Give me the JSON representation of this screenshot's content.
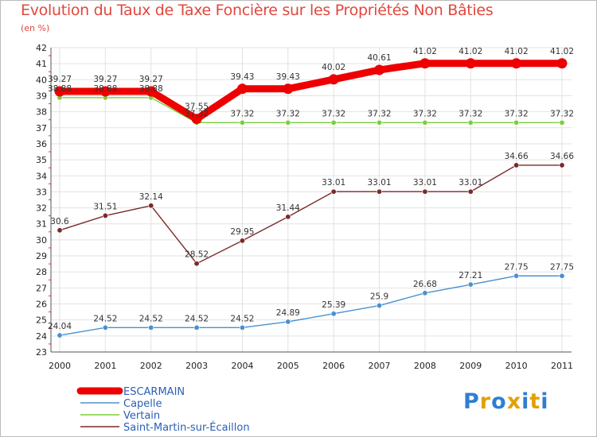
{
  "chart_data": {
    "type": "line",
    "title": "Evolution du Taux de Taxe Foncière sur les Propriétés Non Bâties",
    "ylabel": "(en %)",
    "xlabel": "",
    "ylim": [
      23,
      42
    ],
    "yticks": [
      "23",
      "24",
      "25",
      "26",
      "27",
      "28",
      "29",
      "30",
      "31",
      "32",
      "33",
      "34",
      "35",
      "36",
      "37",
      "38",
      "39",
      "40",
      "41",
      "42"
    ],
    "categories": [
      "2000",
      "2001",
      "2002",
      "2003",
      "2004",
      "2005",
      "2006",
      "2007",
      "2008",
      "2009",
      "2010",
      "2011"
    ],
    "series": [
      {
        "name": "ESCARMAIN",
        "color": "#ee0000",
        "values": [
          39.27,
          39.27,
          39.27,
          37.55,
          39.43,
          39.43,
          40.02,
          40.61,
          41.02,
          41.02,
          41.02,
          41.02
        ],
        "labels": [
          "39.27",
          "39.27",
          "39.27",
          "37.55",
          "39.43",
          "39.43",
          "40.02",
          "40.61",
          "41.02",
          "41.02",
          "41.02",
          "41.02"
        ]
      },
      {
        "name": "Capelle",
        "color": "#4a90d0",
        "values": [
          24.04,
          24.52,
          24.52,
          24.52,
          24.52,
          24.89,
          25.39,
          25.9,
          26.68,
          27.21,
          27.75,
          27.75
        ],
        "labels": [
          "24.04",
          "24.52",
          "24.52",
          "24.52",
          "24.52",
          "24.89",
          "25.39",
          "25.9",
          "26.68",
          "27.21",
          "27.75",
          "27.75"
        ]
      },
      {
        "name": "Vertain",
        "color": "#7cce3a",
        "values": [
          38.88,
          38.88,
          38.88,
          37.32,
          37.32,
          37.32,
          37.32,
          37.32,
          37.32,
          37.32,
          37.32,
          37.32
        ],
        "labels": [
          "38.88",
          "38.88",
          "38.88",
          "37.32",
          "37.32",
          "37.32",
          "37.32",
          "37.32",
          "37.32",
          "37.32",
          "37.32",
          "37.32"
        ]
      },
      {
        "name": "Saint-Martin-sur-Écaillon",
        "color": "#7a2a2a",
        "values": [
          30.6,
          31.51,
          32.14,
          28.52,
          29.95,
          31.44,
          33.01,
          33.01,
          33.01,
          33.01,
          34.66,
          34.66
        ],
        "labels": [
          "30.6",
          "31.51",
          "32.14",
          "28.52",
          "29.95",
          "31.44",
          "33.01",
          "33.01",
          "33.01",
          "33.01",
          "34.66",
          "34.66"
        ]
      }
    ]
  },
  "logo": {
    "letters": [
      "P",
      "r",
      "o",
      "x",
      "i",
      "t",
      "i"
    ],
    "colors": [
      "#2e7fd0",
      "#e2a100",
      "#2e7fd0",
      "#e2a100",
      "#2e7fd0",
      "#e2a100",
      "#2e7fd0"
    ]
  }
}
